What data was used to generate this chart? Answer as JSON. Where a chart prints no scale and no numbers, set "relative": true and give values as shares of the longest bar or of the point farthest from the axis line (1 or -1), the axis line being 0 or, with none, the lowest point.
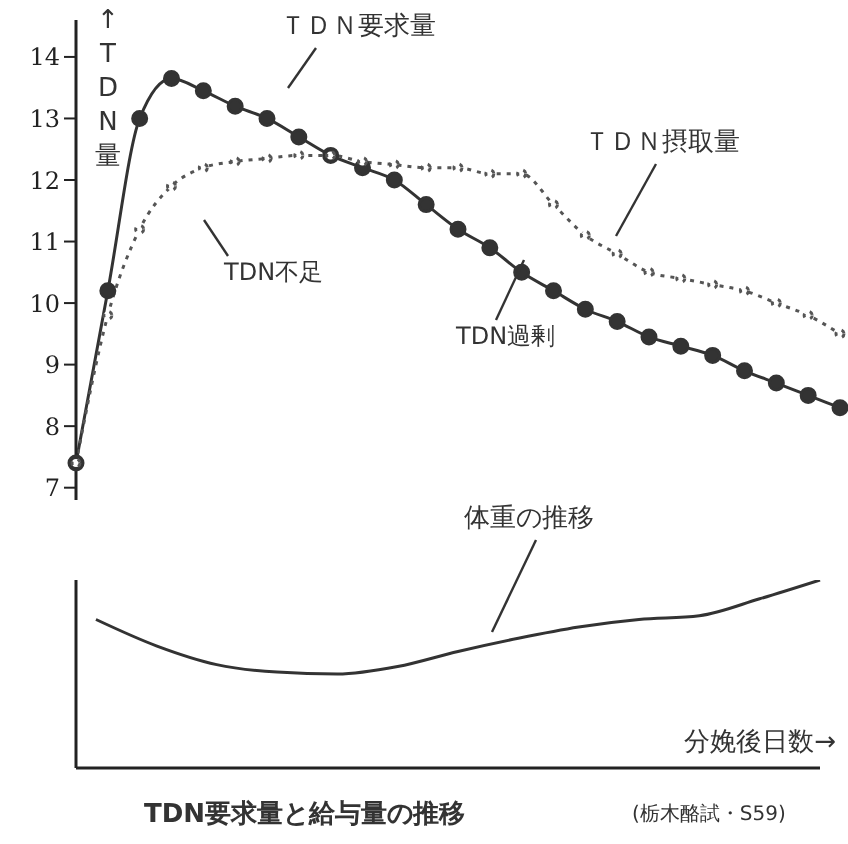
{
  "chart_data": [
    {
      "type": "line",
      "ylabel": "↑TDN量",
      "categories": [
        null,
        null,
        null,
        null,
        null,
        null,
        null,
        null,
        null,
        null,
        null,
        null,
        null,
        null,
        null,
        null,
        null,
        null,
        null,
        null,
        null,
        null,
        null,
        null,
        null
      ],
      "series": [
        {
          "name": "ＴＤＮ要求量",
          "color": "#333333",
          "values": [
            7.4,
            10.2,
            13.0,
            13.65,
            13.45,
            13.2,
            13.0,
            12.7,
            12.4,
            12.2,
            12.0,
            11.6,
            11.2,
            10.9,
            10.5,
            10.2,
            9.9,
            9.7,
            9.45,
            9.3,
            9.15,
            8.9,
            8.7,
            8.5,
            8.3
          ]
        },
        {
          "name": "ＴＤＮ摂取量",
          "color": "#555555",
          "line_style": "dotted",
          "values": [
            7.4,
            9.8,
            11.2,
            11.9,
            12.2,
            12.3,
            12.35,
            12.4,
            12.4,
            12.3,
            12.25,
            12.2,
            12.2,
            12.1,
            12.1,
            11.6,
            11.1,
            10.8,
            10.5,
            10.4,
            10.3,
            10.2,
            10.0,
            9.8,
            9.5
          ]
        }
      ],
      "ylim": [
        6.8,
        14.6
      ],
      "yticks": [
        7,
        8,
        9,
        10,
        11,
        12,
        13,
        14
      ],
      "marker": "circle",
      "tick_labels": "y",
      "annotations": [
        "TDN不足",
        "TDN過剰"
      ]
    },
    {
      "type": "line",
      "relative": true,
      "xlabel": "分娩後日数→",
      "title": "TDN要求量と給与量の推移",
      "categories": [
        null,
        null,
        null,
        null,
        null,
        null,
        null,
        null,
        null,
        null,
        null,
        null,
        null
      ],
      "series": [
        {
          "name": "体重の推移",
          "color": "#333333",
          "values": [
            0.79,
            0.65,
            0.55,
            0.51,
            0.5,
            0.54,
            0.62,
            0.69,
            0.75,
            0.79,
            0.81,
            0.9,
            1
          ]
        }
      ],
      "marker": "none",
      "tick_labels": false,
      "annotations": [
        "(栃木酪試・S59)"
      ]
    }
  ]
}
